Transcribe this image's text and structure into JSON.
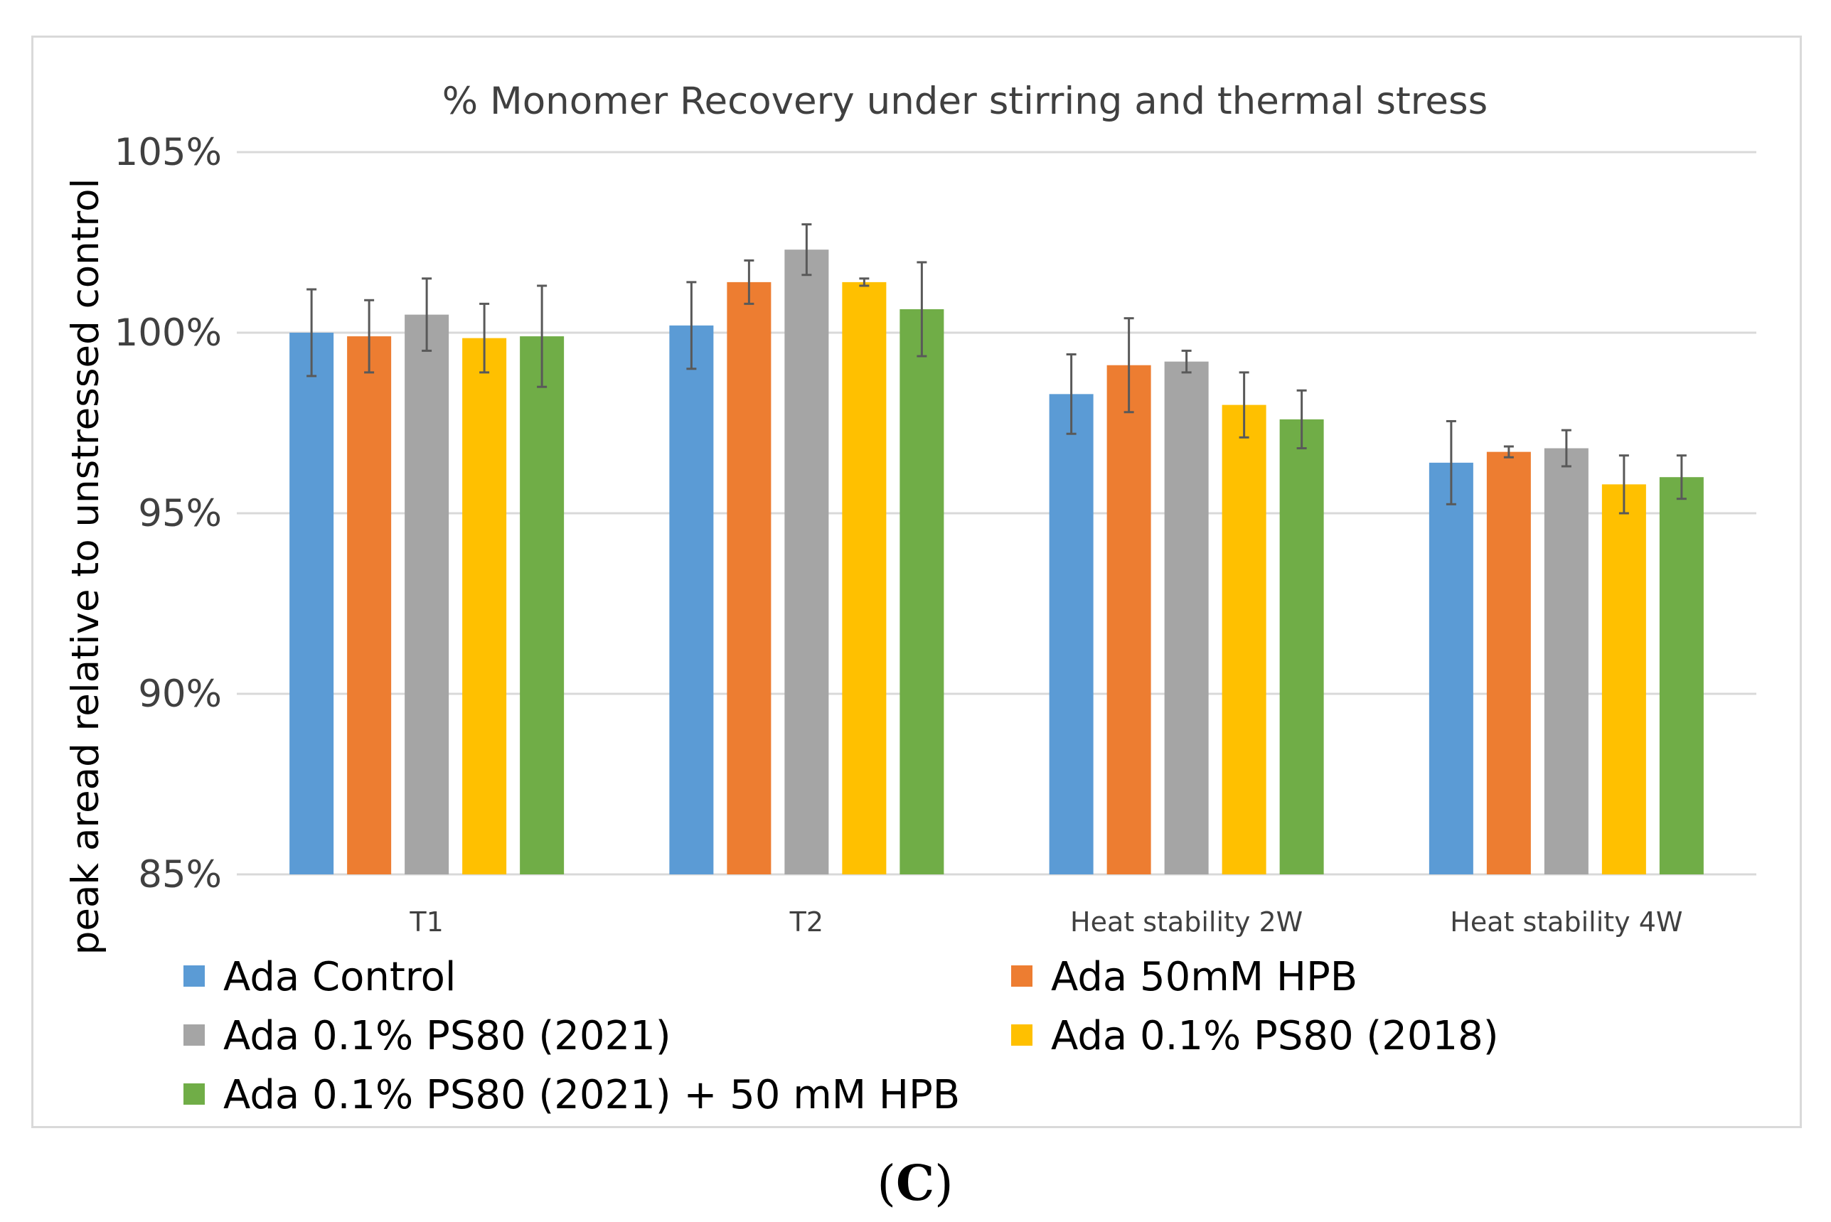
{
  "chart_data": {
    "type": "bar",
    "title": "% Monomer Recovery under stirring and thermal stress",
    "ylabel": "peak aread relative to unstressed control",
    "xlabel": "",
    "ylim": [
      85,
      105
    ],
    "yticks": [
      85,
      90,
      95,
      100,
      105
    ],
    "ytick_labels": [
      "85%",
      "90%",
      "95%",
      "100%",
      "105%"
    ],
    "categories": [
      "T1",
      "T2",
      "Heat stability 2W",
      "Heat stability 4W"
    ],
    "series": [
      {
        "name": "Ada Control",
        "color": "#5b9bd5",
        "values": [
          100.0,
          100.2,
          98.3,
          96.4
        ],
        "errors": [
          1.2,
          1.2,
          1.1,
          1.15
        ]
      },
      {
        "name": "Ada 50mM HPB",
        "color": "#ed7d31",
        "values": [
          99.9,
          101.4,
          99.1,
          96.7
        ],
        "errors": [
          1.0,
          0.6,
          1.3,
          0.15
        ]
      },
      {
        "name": "Ada 0.1% PS80 (2021)",
        "color": "#a5a5a5",
        "values": [
          100.5,
          102.3,
          99.2,
          96.8
        ],
        "errors": [
          1.0,
          0.7,
          0.3,
          0.5
        ]
      },
      {
        "name": "Ada 0.1% PS80 (2018)",
        "color": "#ffc000",
        "values": [
          99.85,
          101.4,
          98.0,
          95.8
        ],
        "errors": [
          0.95,
          0.1,
          0.9,
          0.8
        ]
      },
      {
        "name": "Ada 0.1% PS80 (2021) + 50 mM HPB",
        "color": "#70ad47",
        "values": [
          99.9,
          100.65,
          97.6,
          96.0
        ],
        "errors": [
          1.4,
          1.3,
          0.8,
          0.6
        ]
      }
    ],
    "grid": true,
    "legend_position": "bottom"
  },
  "caption": {
    "open": "(",
    "letter": "C",
    "close": ")"
  }
}
